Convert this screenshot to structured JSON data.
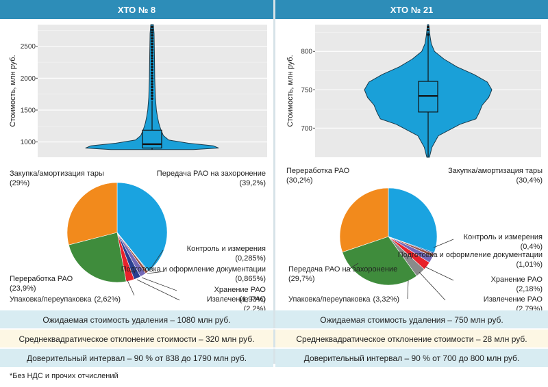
{
  "colors": {
    "header_bg": "#2d8db8",
    "violin_fill": "#1aa0d8",
    "plot_bg": "#e9e9e9",
    "row_light": "#d8ecf2",
    "row_alt": "#fdf7e4",
    "pie_blue": "#1aa3e0",
    "pie_orange": "#f28a1c",
    "pie_green": "#3f8c3c",
    "pie_red": "#e8222b",
    "pie_purple": "#7469b8",
    "pie_brown": "#9b4f43",
    "pie_grey": "#8a8a8a",
    "pie_darkblue": "#2a3f8f"
  },
  "panels": [
    {
      "header": "ХТО № 8",
      "rows": [
        "Ожидаемая стоимость удаления – 1080 млн руб.",
        "Среднеквадратическое отклонение стоимости – 320 млн руб.",
        "Доверительный интервал – 90 % от 838 до 1790 млн руб."
      ]
    },
    {
      "header": "ХТО № 21",
      "rows": [
        "Ожидаемая стоимость удаления – 750 млн руб.",
        "Среднеквадратическое отклонение стоимости – 28 млн руб.",
        "Доверительный интервал – 90 % от 700 до 800 млн руб."
      ]
    }
  ],
  "footnote": "*Без НДС и прочих отчислений",
  "chart_data": [
    {
      "type": "violin",
      "ylabel": "Стоимость, млн руб.",
      "ylim": [
        760,
        2840
      ],
      "yticks": [
        1000,
        1500,
        2000,
        2500
      ],
      "box": {
        "q1": 905,
        "median": 965,
        "q3": 1185,
        "whisker_low": 880,
        "whisker_high": 1650
      },
      "max": 2840,
      "density": [
        [
          880,
          0.62
        ],
        [
          905,
          1.0
        ],
        [
          940,
          0.92
        ],
        [
          980,
          0.55
        ],
        [
          1030,
          0.25
        ],
        [
          1100,
          0.17
        ],
        [
          1200,
          0.13
        ],
        [
          1300,
          0.1
        ],
        [
          1400,
          0.08
        ],
        [
          1500,
          0.065
        ],
        [
          1700,
          0.05
        ],
        [
          2000,
          0.04
        ],
        [
          2400,
          0.035
        ],
        [
          2700,
          0.03
        ],
        [
          2840,
          0.02
        ]
      ],
      "grid": true
    },
    {
      "type": "violin",
      "ylabel": "Стоимость, млн руб.",
      "ylim": [
        662,
        835
      ],
      "yticks": [
        700,
        750,
        800
      ],
      "box": {
        "q1": 721,
        "median": 742,
        "q3": 761,
        "whisker_low": 662,
        "whisker_high": 825
      },
      "max": 835,
      "density": [
        [
          662,
          0.02
        ],
        [
          675,
          0.06
        ],
        [
          690,
          0.16
        ],
        [
          705,
          0.5
        ],
        [
          712,
          0.75
        ],
        [
          720,
          0.8
        ],
        [
          730,
          0.85
        ],
        [
          740,
          0.95
        ],
        [
          750,
          1.0
        ],
        [
          760,
          0.93
        ],
        [
          770,
          0.72
        ],
        [
          780,
          0.45
        ],
        [
          790,
          0.25
        ],
        [
          800,
          0.1
        ],
        [
          810,
          0.05
        ],
        [
          820,
          0.03
        ],
        [
          835,
          0.01
        ]
      ],
      "grid": true
    },
    {
      "type": "pie",
      "slices": [
        {
          "label": "Передача РАО на захоронение",
          "pct_text": "(39,2%)",
          "value": 39.2,
          "color": "#1aa3e0"
        },
        {
          "label": "Контроль и измерения",
          "pct_text": "(0,285%)",
          "value": 0.285,
          "color": "#8a8a8a"
        },
        {
          "label": "Подготовка и оформление документации",
          "pct_text": "(0,865%)",
          "value": 0.865,
          "color": "#9b4f43"
        },
        {
          "label": "Хранение РАО",
          "pct_text": "(1,93%)",
          "value": 1.93,
          "color": "#7469b8"
        },
        {
          "label": "Извлечение РАО",
          "pct_text": "(2,2%)",
          "value": 2.2,
          "color": "#2a3f8f"
        },
        {
          "label": "Упаковка/переупаковка",
          "pct_text": "(2,62%)",
          "value": 2.62,
          "color": "#e8222b"
        },
        {
          "label": "Переработка РАО",
          "pct_text": "(23,9%)",
          "value": 23.9,
          "color": "#3f8c3c"
        },
        {
          "label": "Закупка/амортизация тары",
          "pct_text": "(29%)",
          "value": 29,
          "color": "#f28a1c"
        }
      ]
    },
    {
      "type": "pie",
      "slices": [
        {
          "label": "Закупка/амортизация тары",
          "pct_text": "(30,4%)",
          "value": 30.4,
          "color": "#1aa3e0"
        },
        {
          "label": "Контроль и измерения",
          "pct_text": "(0,4%)",
          "value": 0.4,
          "color": "#2a3f8f"
        },
        {
          "label": "Подготовка и оформление документации",
          "pct_text": "(1,01%)",
          "value": 1.01,
          "color": "#9b4f43"
        },
        {
          "label": "Хранение РАО",
          "pct_text": "(2,18%)",
          "value": 2.18,
          "color": "#7469b8"
        },
        {
          "label": "Извлечение РАО",
          "pct_text": "(2,79%)",
          "value": 2.79,
          "color": "#e8222b"
        },
        {
          "label": "Упаковка/переупаковка",
          "pct_text": "(3,32%)",
          "value": 3.32,
          "color": "#8a8a8a"
        },
        {
          "label": "Передача РАО на захоронение",
          "pct_text": "(29,7%)",
          "value": 29.7,
          "color": "#3f8c3c"
        },
        {
          "label": "Переработка РАО",
          "pct_text": "(30,2%)",
          "value": 30.2,
          "color": "#f28a1c"
        }
      ]
    }
  ]
}
